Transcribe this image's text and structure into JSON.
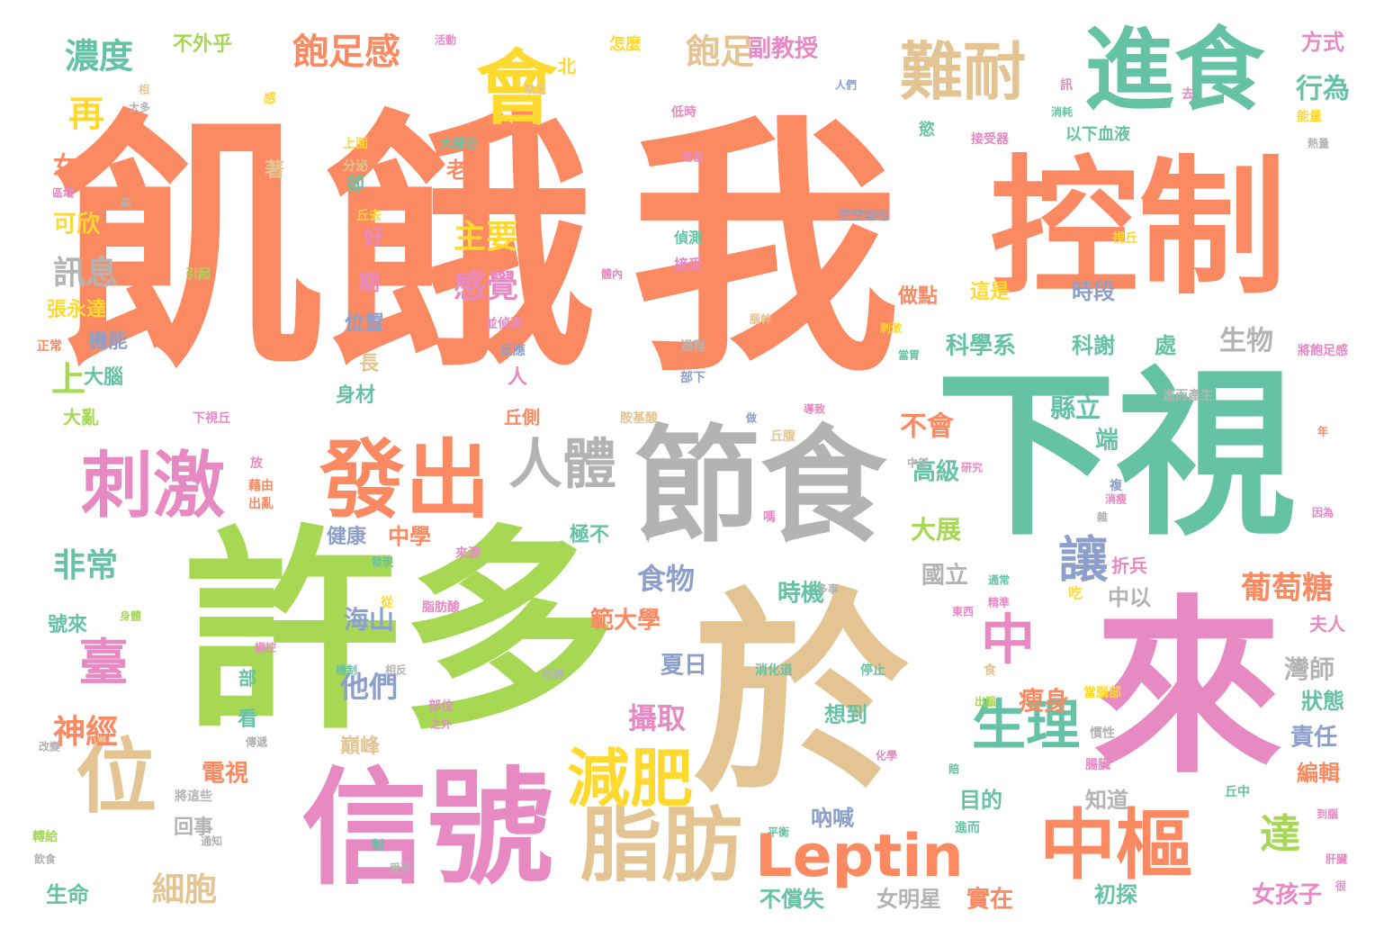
{
  "colors": {
    "orange": "#fb8a62",
    "green": "#66c2a5",
    "tan": "#e5c494",
    "pink": "#e78ac3",
    "lime": "#a6d854",
    "gray": "#b3b3b3",
    "yellow": "#ffd92f",
    "blue": "#8da0cb"
  },
  "words": [
    {
      "text": "飢餓",
      "color": "orange"
    },
    {
      "text": "我",
      "color": "orange"
    },
    {
      "text": "控制",
      "color": "orange"
    },
    {
      "text": "下視",
      "color": "green"
    },
    {
      "text": "於",
      "color": "tan"
    },
    {
      "text": "來",
      "color": "pink"
    },
    {
      "text": "許多",
      "color": "lime"
    },
    {
      "text": "節食",
      "color": "gray"
    },
    {
      "text": "信號",
      "color": "pink"
    },
    {
      "text": "進食",
      "color": "green"
    },
    {
      "text": "會",
      "color": "yellow"
    },
    {
      "text": "難耐",
      "color": "tan"
    },
    {
      "text": "發出",
      "color": "orange"
    },
    {
      "text": "刺激",
      "color": "pink"
    },
    {
      "text": "位",
      "color": "tan"
    },
    {
      "text": "脂肪",
      "color": "tan"
    },
    {
      "text": "中樞",
      "color": "orange"
    },
    {
      "text": "Leptin",
      "color": "orange"
    },
    {
      "text": "人體",
      "color": "gray"
    },
    {
      "text": "減肥",
      "color": "yellow"
    },
    {
      "text": "生理",
      "color": "green"
    },
    {
      "text": "中",
      "color": "pink"
    },
    {
      "text": "臺",
      "color": "pink"
    },
    {
      "text": "讓",
      "color": "blue"
    },
    {
      "text": "達",
      "color": "lime"
    },
    {
      "text": "再",
      "color": "yellow"
    },
    {
      "text": "上",
      "color": "lime"
    },
    {
      "text": "飽足感",
      "color": "orange"
    },
    {
      "text": "飽足",
      "color": "tan"
    },
    {
      "text": "濃度",
      "color": "green"
    },
    {
      "text": "主要",
      "color": "yellow"
    },
    {
      "text": "感覺",
      "color": "pink"
    },
    {
      "text": "訊息",
      "color": "gray"
    },
    {
      "text": "非常",
      "color": "green"
    },
    {
      "text": "神經",
      "color": "orange"
    },
    {
      "text": "細胞",
      "color": "tan"
    },
    {
      "text": "葡萄糖",
      "color": "orange"
    },
    {
      "text": "食物",
      "color": "blue"
    },
    {
      "text": "攝取",
      "color": "pink"
    },
    {
      "text": "他們",
      "color": "blue"
    },
    {
      "text": "行為",
      "color": "green"
    },
    {
      "text": "方式",
      "color": "pink"
    },
    {
      "text": "副教授",
      "color": "pink"
    },
    {
      "text": "不外乎",
      "color": "lime"
    },
    {
      "text": "女生",
      "color": "orange"
    },
    {
      "text": "可欣",
      "color": "yellow"
    },
    {
      "text": "老師",
      "color": "orange"
    },
    {
      "text": "張永達",
      "color": "yellow"
    },
    {
      "text": "機能",
      "color": "blue"
    },
    {
      "text": "大腦",
      "color": "green"
    },
    {
      "text": "大亂",
      "color": "lime"
    },
    {
      "text": "生命",
      "color": "green"
    },
    {
      "text": "號來",
      "color": "green"
    },
    {
      "text": "不會",
      "color": "orange"
    },
    {
      "text": "縣立",
      "color": "green"
    },
    {
      "text": "端",
      "color": "green"
    },
    {
      "text": "高級",
      "color": "green"
    },
    {
      "text": "大展",
      "color": "lime"
    },
    {
      "text": "中學",
      "color": "orange"
    },
    {
      "text": "健康",
      "color": "blue"
    },
    {
      "text": "國立",
      "color": "gray"
    },
    {
      "text": "海山",
      "color": "blue"
    },
    {
      "text": "時機",
      "color": "green"
    },
    {
      "text": "範大學",
      "color": "orange"
    },
    {
      "text": "夏日",
      "color": "blue"
    },
    {
      "text": "瘦身",
      "color": "orange"
    },
    {
      "text": "灣師",
      "color": "gray"
    },
    {
      "text": "狀態",
      "color": "green"
    },
    {
      "text": "責任",
      "color": "blue"
    },
    {
      "text": "編輯",
      "color": "orange"
    },
    {
      "text": "女孩子",
      "color": "pink"
    },
    {
      "text": "初探",
      "color": "green"
    },
    {
      "text": "實在",
      "color": "orange"
    },
    {
      "text": "目的",
      "color": "green"
    },
    {
      "text": "知道",
      "color": "gray"
    },
    {
      "text": "吶喊",
      "color": "blue"
    },
    {
      "text": "想到",
      "color": "green"
    },
    {
      "text": "電視",
      "color": "orange"
    },
    {
      "text": "回事",
      "color": "gray"
    },
    {
      "text": "女明星",
      "color": "gray"
    },
    {
      "text": "不償失",
      "color": "green"
    },
    {
      "text": "科學系",
      "color": "green"
    },
    {
      "text": "科謝",
      "color": "green"
    },
    {
      "text": "生物",
      "color": "gray"
    },
    {
      "text": "處",
      "color": "green"
    },
    {
      "text": "時段",
      "color": "blue"
    },
    {
      "text": "這是",
      "color": "yellow"
    },
    {
      "text": "做點",
      "color": "orange"
    },
    {
      "text": "位置",
      "color": "blue"
    },
    {
      "text": "期",
      "color": "pink"
    },
    {
      "text": "好",
      "color": "pink"
    },
    {
      "text": "長",
      "color": "tan"
    },
    {
      "text": "身材",
      "color": "green"
    },
    {
      "text": "巔峰",
      "color": "tan"
    },
    {
      "text": "看",
      "color": "green"
    },
    {
      "text": "部",
      "color": "green"
    },
    {
      "text": "極不",
      "color": "green"
    },
    {
      "text": "中以",
      "color": "gray"
    },
    {
      "text": "折兵",
      "color": "pink"
    },
    {
      "text": "夫人",
      "color": "pink"
    },
    {
      "text": "著",
      "color": "tan"
    },
    {
      "text": "卻",
      "color": "green"
    },
    {
      "text": "北",
      "color": "yellow"
    },
    {
      "text": "怎麼",
      "color": "yellow"
    },
    {
      "text": "以下血液",
      "color": "green"
    },
    {
      "text": "訊",
      "color": "pink"
    },
    {
      "text": "活動",
      "color": "pink"
    },
    {
      "text": "缺乏",
      "color": "tan"
    },
    {
      "text": "低時",
      "color": "pink"
    },
    {
      "text": "人們",
      "color": "blue"
    },
    {
      "text": "消耗",
      "color": "green"
    },
    {
      "text": "去",
      "color": "pink"
    },
    {
      "text": "能量",
      "color": "yellow"
    },
    {
      "text": "熱量",
      "color": "gray"
    },
    {
      "text": "接受器",
      "color": "pink"
    },
    {
      "text": "慾",
      "color": "green"
    },
    {
      "text": "空空如也",
      "color": "blue"
    },
    {
      "text": "視丘",
      "color": "yellow"
    },
    {
      "text": "偵測",
      "color": "green"
    },
    {
      "text": "接受",
      "color": "pink"
    },
    {
      "text": "老鼠",
      "color": "pink"
    },
    {
      "text": "丘去",
      "color": "yellow"
    },
    {
      "text": "大部分",
      "color": "green"
    },
    {
      "text": "上面",
      "color": "yellow"
    },
    {
      "text": "分泌",
      "color": "tan"
    },
    {
      "text": "區域",
      "color": "pink"
    },
    {
      "text": "血",
      "color": "gray"
    },
    {
      "text": "太多",
      "color": "gray"
    },
    {
      "text": "相",
      "color": "tan"
    },
    {
      "text": "感",
      "color": "yellow"
    },
    {
      "text": "引起",
      "color": "lime"
    },
    {
      "text": "體內",
      "color": "pink"
    },
    {
      "text": "腦幹",
      "color": "tan"
    },
    {
      "text": "並偵測",
      "color": "pink"
    },
    {
      "text": "刺激",
      "color": "yellow"
    },
    {
      "text": "反應",
      "color": "blue"
    },
    {
      "text": "過程",
      "color": "gray"
    },
    {
      "text": "部下",
      "color": "blue"
    },
    {
      "text": "人",
      "color": "pink"
    },
    {
      "text": "丘側",
      "color": "orange"
    },
    {
      "text": "正常",
      "color": "orange"
    },
    {
      "text": "下視丘",
      "color": "pink"
    },
    {
      "text": "胺基酸",
      "color": "tan"
    },
    {
      "text": "做",
      "color": "blue"
    },
    {
      "text": "導致",
      "color": "pink"
    },
    {
      "text": "丘腹",
      "color": "tan"
    },
    {
      "text": "當胃",
      "color": "green"
    },
    {
      "text": "將飽足感",
      "color": "pink"
    },
    {
      "text": "進而產生",
      "color": "gray"
    },
    {
      "text": "年",
      "color": "orange"
    },
    {
      "text": "放",
      "color": "pink"
    },
    {
      "text": "藉由",
      "color": "orange"
    },
    {
      "text": "出亂",
      "color": "orange"
    },
    {
      "text": "中部",
      "color": "gray"
    },
    {
      "text": "研究",
      "color": "pink"
    },
    {
      "text": "複",
      "color": "blue"
    },
    {
      "text": "消瘦",
      "color": "pink"
    },
    {
      "text": "雜",
      "color": "gray"
    },
    {
      "text": "因為",
      "color": "pink"
    },
    {
      "text": "嗎",
      "color": "pink"
    },
    {
      "text": "發現",
      "color": "green"
    },
    {
      "text": "來源",
      "color": "pink"
    },
    {
      "text": "多事",
      "color": "gray"
    },
    {
      "text": "從",
      "color": "yellow"
    },
    {
      "text": "脂肪酸",
      "color": "pink"
    },
    {
      "text": "通常",
      "color": "green"
    },
    {
      "text": "精準",
      "color": "pink"
    },
    {
      "text": "東西",
      "color": "pink"
    },
    {
      "text": "吃",
      "color": "yellow"
    },
    {
      "text": "身體",
      "color": "lime"
    },
    {
      "text": "調控",
      "color": "pink"
    },
    {
      "text": "機制",
      "color": "green"
    },
    {
      "text": "相反",
      "color": "gray"
    },
    {
      "text": "消化道",
      "color": "green"
    },
    {
      "text": "停止",
      "color": "green"
    },
    {
      "text": "所釋",
      "color": "gray"
    },
    {
      "text": "部位",
      "color": "pink"
    },
    {
      "text": "之外",
      "color": "pink"
    },
    {
      "text": "傳遞",
      "color": "gray"
    },
    {
      "text": "化學",
      "color": "pink"
    },
    {
      "text": "食",
      "color": "tan"
    },
    {
      "text": "出腦",
      "color": "lime"
    },
    {
      "text": "當腦部",
      "color": "yellow"
    },
    {
      "text": "慣性",
      "color": "gray"
    },
    {
      "text": "腸臟",
      "color": "pink"
    },
    {
      "text": "丘中",
      "color": "green"
    },
    {
      "text": "改變",
      "color": "gray"
    },
    {
      "text": "將這些",
      "color": "gray"
    },
    {
      "text": "轉給",
      "color": "lime"
    },
    {
      "text": "通知",
      "color": "gray"
    },
    {
      "text": "飲食",
      "color": "gray"
    },
    {
      "text": "對",
      "color": "green"
    },
    {
      "text": "受到",
      "color": "gray"
    },
    {
      "text": "平衡",
      "color": "green"
    },
    {
      "text": "進而",
      "color": "green"
    },
    {
      "text": "到腦",
      "color": "pink"
    },
    {
      "text": "肝臟",
      "color": "pink"
    },
    {
      "text": "很",
      "color": "pink"
    },
    {
      "text": "賠",
      "color": "green"
    }
  ]
}
